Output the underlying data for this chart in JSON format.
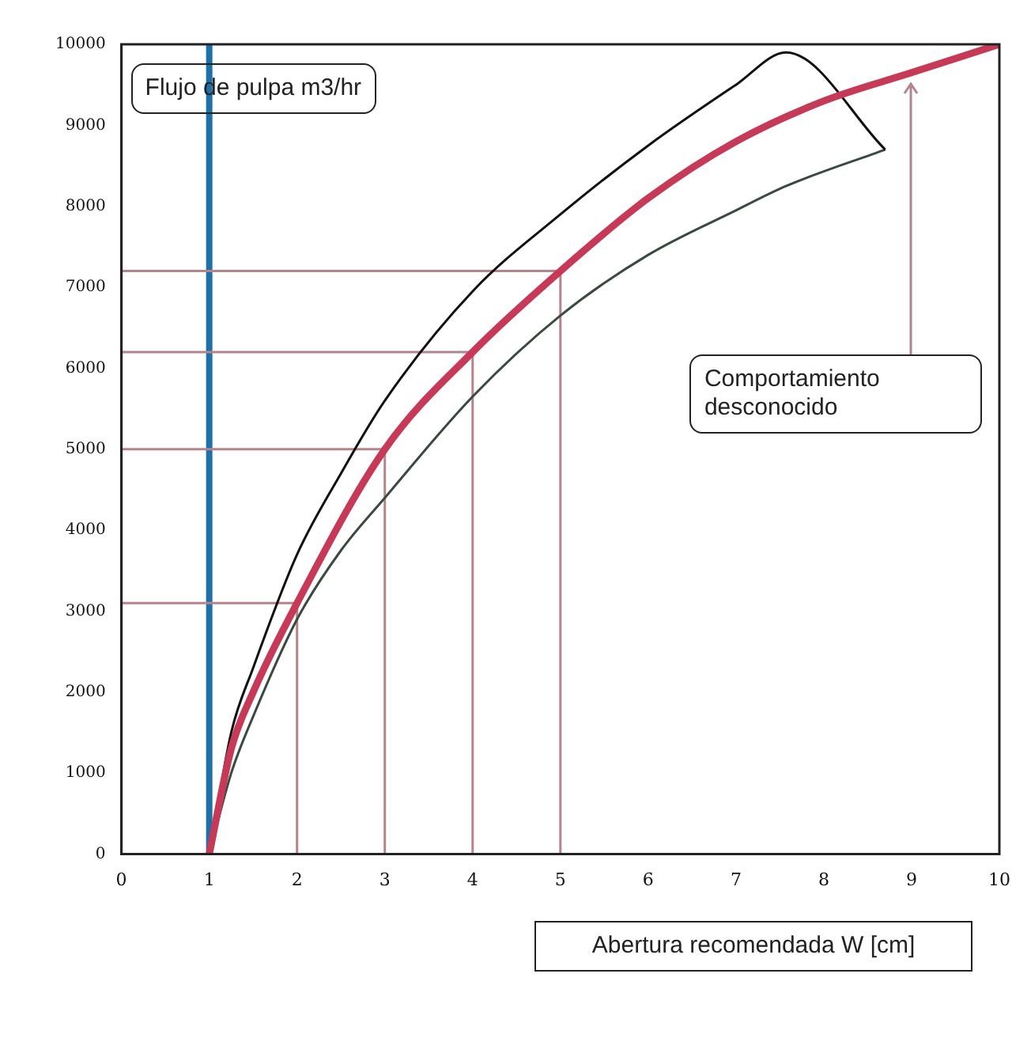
{
  "chart_data": {
    "type": "line",
    "ylabel": "Flujo de pulpa  m3/hr",
    "xlabel": "Abertura recomendada  W [cm]",
    "xlim": [
      0,
      10
    ],
    "xticks": [
      0,
      1,
      2,
      3,
      4,
      5,
      6,
      7,
      8,
      9,
      10
    ],
    "ylim": [
      0,
      10000
    ],
    "yticks": [
      0,
      1000,
      2000,
      3000,
      4000,
      5000,
      6000,
      7000,
      8000,
      9000,
      10000
    ],
    "grid": false,
    "legend": false,
    "marker": "none",
    "line_style": "solid",
    "series": [
      {
        "color": "#c63a57",
        "x": [
          1,
          1.25,
          1.5,
          2,
          3,
          4,
          5,
          6,
          7,
          8,
          9,
          10
        ],
        "values": [
          0,
          1300,
          2000,
          3100,
          5000,
          6200,
          7200,
          8100,
          8800,
          9300,
          9650,
          10000
        ]
      },
      {
        "color": "#111111",
        "x": [
          1,
          1.25,
          1.5,
          2,
          2.5,
          3,
          4,
          5,
          6,
          7,
          7.57,
          8.7
        ],
        "values": [
          0,
          1500,
          2300,
          3700,
          4700,
          5600,
          6950,
          7900,
          8750,
          9500,
          9900,
          8700
        ]
      },
      {
        "color": "#3a4a40",
        "x": [
          1,
          1.25,
          1.5,
          2,
          2.5,
          3,
          4,
          5,
          6,
          7,
          7.57,
          8.7
        ],
        "values": [
          0,
          1000,
          1700,
          2900,
          3750,
          4400,
          5650,
          6650,
          7400,
          7950,
          8250,
          8700
        ]
      },
      {
        "color": "#b4848c",
        "x": [
          0,
          2,
          2
        ],
        "values": [
          3100,
          3100,
          0
        ]
      },
      {
        "color": "#b4848c",
        "x": [
          0,
          3,
          3
        ],
        "values": [
          5000,
          5000,
          0
        ]
      },
      {
        "color": "#b4848c",
        "x": [
          0,
          4,
          4
        ],
        "values": [
          6200,
          6200,
          0
        ]
      },
      {
        "color": "#b4848c",
        "x": [
          0,
          5,
          5
        ],
        "values": [
          7200,
          7200,
          0
        ]
      }
    ],
    "ref_lines": [
      {
        "axis": "x",
        "value": 1,
        "color": "#1f6fa8"
      }
    ],
    "annotations": [
      "Comportamiento desconocido"
    ]
  }
}
